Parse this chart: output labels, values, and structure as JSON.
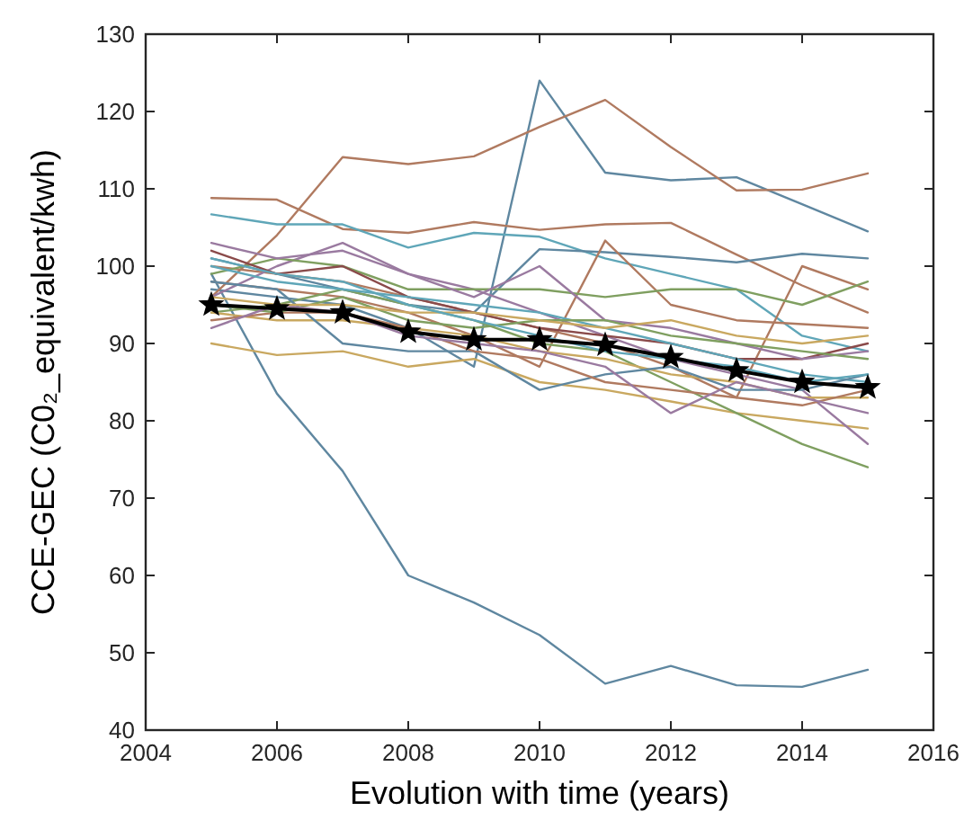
{
  "chart_data": {
    "type": "line",
    "xlabel": "Evolution with time (years)",
    "ylabel": "CCE-GEC (C0₂_equivalent/kwh)",
    "x": [
      2005,
      2006,
      2007,
      2008,
      2009,
      2010,
      2011,
      2012,
      2013,
      2014,
      2015
    ],
    "xlim": [
      2004,
      2016
    ],
    "xticks": [
      2004,
      2006,
      2008,
      2010,
      2012,
      2014,
      2016
    ],
    "ylim": [
      40,
      130
    ],
    "yticks": [
      40,
      50,
      60,
      70,
      80,
      90,
      100,
      110,
      120,
      130
    ],
    "grid": false,
    "marker": "none",
    "series": [
      {
        "color": "#5f87a0",
        "values": [
          99,
          83.5,
          73.5,
          60,
          56.5,
          52.3,
          46,
          48.3,
          45.8,
          45.6,
          47.8
        ]
      },
      {
        "color": "#5f87a0",
        "values": [
          97,
          96,
          95,
          92,
          87,
          124,
          112.1,
          111.1,
          111.5,
          108,
          104.5
        ]
      },
      {
        "color": "#b07a60",
        "values": [
          96,
          104,
          114.1,
          113.2,
          114.2,
          118,
          121.5,
          115.4,
          109.8,
          109.9,
          112
        ]
      },
      {
        "color": "#b07a60",
        "values": [
          108.8,
          108.6,
          104.8,
          104.3,
          105.7,
          104.7,
          105.4,
          105.6,
          101.5,
          97.5,
          94
        ]
      },
      {
        "color": "#5fa6b8",
        "values": [
          106.7,
          105.4,
          105.4,
          102.4,
          104.3,
          103.8,
          101,
          99,
          97,
          91,
          89
        ]
      },
      {
        "color": "#5f87a0",
        "values": [
          101,
          99,
          97,
          95,
          94,
          102.2,
          101.8,
          101.2,
          100.5,
          101.6,
          101
        ]
      },
      {
        "color": "#b07a60",
        "values": [
          98,
          97,
          96,
          94,
          91,
          87,
          103.3,
          95,
          93,
          92.5,
          92
        ]
      },
      {
        "color": "#b07a60",
        "values": [
          100,
          99,
          98,
          96,
          94,
          92,
          90,
          87,
          83,
          100,
          97
        ]
      },
      {
        "color": "#c9a860",
        "values": [
          90,
          88.5,
          89,
          87,
          88,
          85,
          84,
          82.5,
          81,
          80,
          79
        ]
      },
      {
        "color": "#7f9f60",
        "values": [
          94,
          95,
          97,
          95,
          93,
          90,
          89,
          85,
          81,
          77,
          74
        ]
      },
      {
        "color": "#9a7aa0",
        "values": [
          96,
          100,
          103,
          99,
          97,
          94,
          91,
          88,
          86,
          84,
          77
        ]
      },
      {
        "color": "#7f9f60",
        "values": [
          99,
          101,
          100,
          97,
          97,
          97,
          96,
          97,
          97,
          95,
          98
        ]
      },
      {
        "color": "#8a4a4a",
        "values": [
          102,
          99,
          100,
          96,
          94,
          92,
          91,
          90,
          88,
          88,
          90
        ]
      },
      {
        "color": "#5fa6b8",
        "values": [
          100,
          98,
          97,
          96,
          95,
          94,
          92,
          90,
          88,
          86,
          85
        ]
      },
      {
        "color": "#9a7aa0",
        "values": [
          103,
          101,
          102,
          99,
          96,
          100,
          93,
          92,
          90,
          88,
          89
        ]
      },
      {
        "color": "#c9a860",
        "values": [
          94,
          93,
          93,
          92,
          91,
          89,
          88,
          86,
          85,
          83,
          83
        ]
      },
      {
        "color": "#5f87a0",
        "values": [
          98,
          97,
          90,
          89,
          89,
          84,
          86,
          87,
          84,
          84,
          86
        ]
      },
      {
        "color": "#b07a60",
        "values": [
          93,
          94,
          94,
          92,
          89,
          88,
          85,
          84,
          83,
          82,
          84
        ]
      },
      {
        "color": "#7f9f60",
        "values": [
          95,
          94,
          96,
          93,
          92,
          93,
          93,
          91,
          90,
          89,
          88
        ]
      },
      {
        "color": "#9a7aa0",
        "values": [
          92,
          95,
          94,
          91,
          90,
          89,
          87,
          81,
          85,
          83,
          81
        ]
      },
      {
        "color": "#c9a860",
        "values": [
          96,
          95,
          95,
          94,
          94,
          93,
          92,
          93,
          91,
          90,
          91
        ]
      },
      {
        "color": "#5fa6b8",
        "values": [
          101,
          99,
          98,
          95,
          93,
          91,
          89,
          88,
          87,
          85,
          86
        ]
      },
      {
        "color": "#000000",
        "marker": "star",
        "values": [
          95,
          94.5,
          94,
          91.5,
          90.5,
          90.5,
          89.8,
          88.2,
          86.5,
          85,
          84.3
        ]
      }
    ]
  }
}
